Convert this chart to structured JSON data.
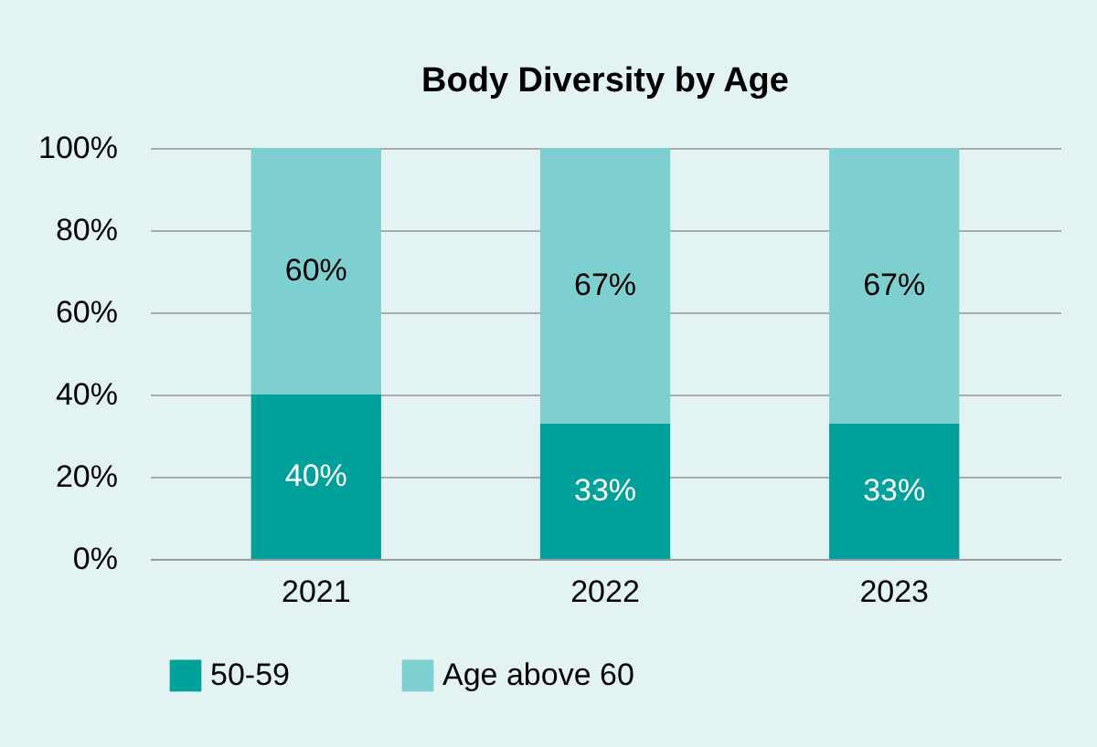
{
  "chart_data": {
    "type": "bar",
    "title": "Body Diversity by Age",
    "stacked": true,
    "categories": [
      "2021",
      "2022",
      "2023"
    ],
    "series": [
      {
        "name": "50-59",
        "color": "#00a19a",
        "values": [
          40,
          33,
          33
        ],
        "value_labels": [
          "40%",
          "33%",
          "33%"
        ]
      },
      {
        "name": "Age above 60",
        "color": "#7dcfd0",
        "values": [
          60,
          67,
          67
        ],
        "value_labels": [
          "60%",
          "67%",
          "67%"
        ]
      }
    ],
    "ylim": [
      0,
      100
    ],
    "yticks": [
      {
        "value": 0,
        "label": "0%"
      },
      {
        "value": 20,
        "label": "20%"
      },
      {
        "value": 40,
        "label": "40%"
      },
      {
        "value": 60,
        "label": "60%"
      },
      {
        "value": 80,
        "label": "80%"
      },
      {
        "value": 100,
        "label": "100%"
      }
    ],
    "grid": "y",
    "legend": "bottom"
  }
}
